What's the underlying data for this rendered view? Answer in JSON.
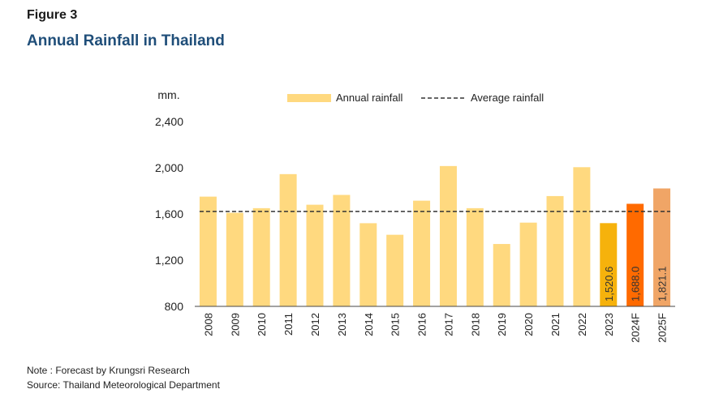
{
  "figure_label": "Figure 3",
  "title": "Annual Rainfall in Thailand",
  "notes": {
    "note": "Note : Forecast by Krungsri Research",
    "source": "Source: Thailand Meteorological Department"
  },
  "chart_data": {
    "type": "bar",
    "ylabel": "mm.",
    "ylim": [
      800,
      2400
    ],
    "yticks": [
      800,
      1200,
      1600,
      2000,
      2400
    ],
    "ytick_labels": [
      "800",
      "1,200",
      "1,600",
      "2,000",
      "2,400"
    ],
    "categories": [
      "2008",
      "2009",
      "2010",
      "2011",
      "2012",
      "2013",
      "2014",
      "2015",
      "2016",
      "2017",
      "2018",
      "2019",
      "2020",
      "2021",
      "2022",
      "2023",
      "2024F",
      "2025F"
    ],
    "series": [
      {
        "name": "Annual rainfall",
        "values": [
          1750,
          1610,
          1650,
          1945,
          1680,
          1765,
          1520,
          1420,
          1715,
          2015,
          1650,
          1340,
          1525,
          1755,
          2005,
          1520.6,
          1688.0,
          1821.1
        ]
      }
    ],
    "average": {
      "name": "Average rainfall",
      "value": 1622
    },
    "data_labels": {
      "2023": "1,520.6",
      "2024F": "1,688.0",
      "2025F": "1,821.1"
    },
    "colors": {
      "default": "#ffd97f",
      "2023": "#f6b20c",
      "2024F": "#ff6a00",
      "2025F": "#f0a566",
      "average_line": "#333333"
    },
    "legend_position": "top",
    "grid": false
  }
}
